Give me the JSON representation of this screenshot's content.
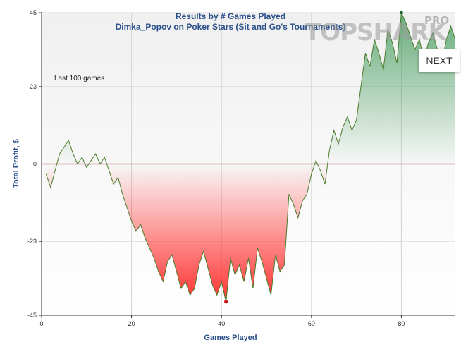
{
  "title": "Results by # Games Played",
  "subtitle": "Dimka_Popov on Poker Stars (Sit and Go's Tournaments)",
  "watermark": {
    "text": "TOPSHARK",
    "pro": "PRO"
  },
  "next_button": {
    "label": "NEXT"
  },
  "note": "Last 100 games",
  "colors": {
    "positive": "#2e8b3e",
    "negative": "#ff2a2a",
    "zero_line": "#8b1a1a",
    "axis_text": "#2a4f8a"
  },
  "chart_data": {
    "type": "area",
    "xlabel": "Games Played",
    "ylabel": "Total Profit, $",
    "xlim": [
      0,
      92
    ],
    "ylim": [
      -45,
      45
    ],
    "xticks": [
      "0",
      "20",
      "40",
      "60",
      "80"
    ],
    "yticks": [
      "45",
      "23",
      "0",
      "-23",
      "-45"
    ],
    "grid": true,
    "x": [
      1,
      2,
      3,
      4,
      5,
      6,
      7,
      8,
      9,
      10,
      11,
      12,
      13,
      14,
      15,
      16,
      17,
      18,
      19,
      20,
      21,
      22,
      23,
      24,
      25,
      26,
      27,
      28,
      29,
      30,
      31,
      32,
      33,
      34,
      35,
      36,
      37,
      38,
      39,
      40,
      41,
      42,
      43,
      44,
      45,
      46,
      47,
      48,
      49,
      50,
      51,
      52,
      53,
      54,
      55,
      56,
      57,
      58,
      59,
      60,
      61,
      62,
      63,
      64,
      65,
      66,
      67,
      68,
      69,
      70,
      71,
      72,
      73,
      74,
      75,
      76,
      77,
      78,
      79,
      80,
      81,
      82,
      83,
      84,
      85,
      86,
      87,
      88,
      89,
      90,
      91,
      92
    ],
    "y": [
      -3,
      -7,
      -2,
      3,
      5,
      7,
      3,
      0,
      2,
      -1,
      1,
      3,
      0,
      2,
      -2,
      -6,
      -4,
      -9,
      -13,
      -17,
      -20,
      -18,
      -22,
      -25,
      -28,
      -32,
      -35,
      -29,
      -27,
      -32,
      -37,
      -35,
      -39,
      -37,
      -30,
      -26,
      -31,
      -36,
      -39,
      -35,
      -41,
      -28,
      -33,
      -30,
      -35,
      -28,
      -37,
      -25,
      -29,
      -34,
      -39,
      -27,
      -32,
      -30,
      -9,
      -12,
      -16,
      -11,
      -9,
      -3,
      1,
      -2,
      -6,
      4,
      10,
      6,
      11,
      14,
      10,
      13,
      23,
      33,
      29,
      37,
      33,
      28,
      40,
      36,
      30,
      45,
      42,
      38,
      34,
      37,
      31,
      36,
      39,
      34,
      30,
      37,
      41,
      37
    ],
    "min_point": {
      "x": 41,
      "y": -41
    },
    "max_point": {
      "x": 80,
      "y": 45
    }
  }
}
